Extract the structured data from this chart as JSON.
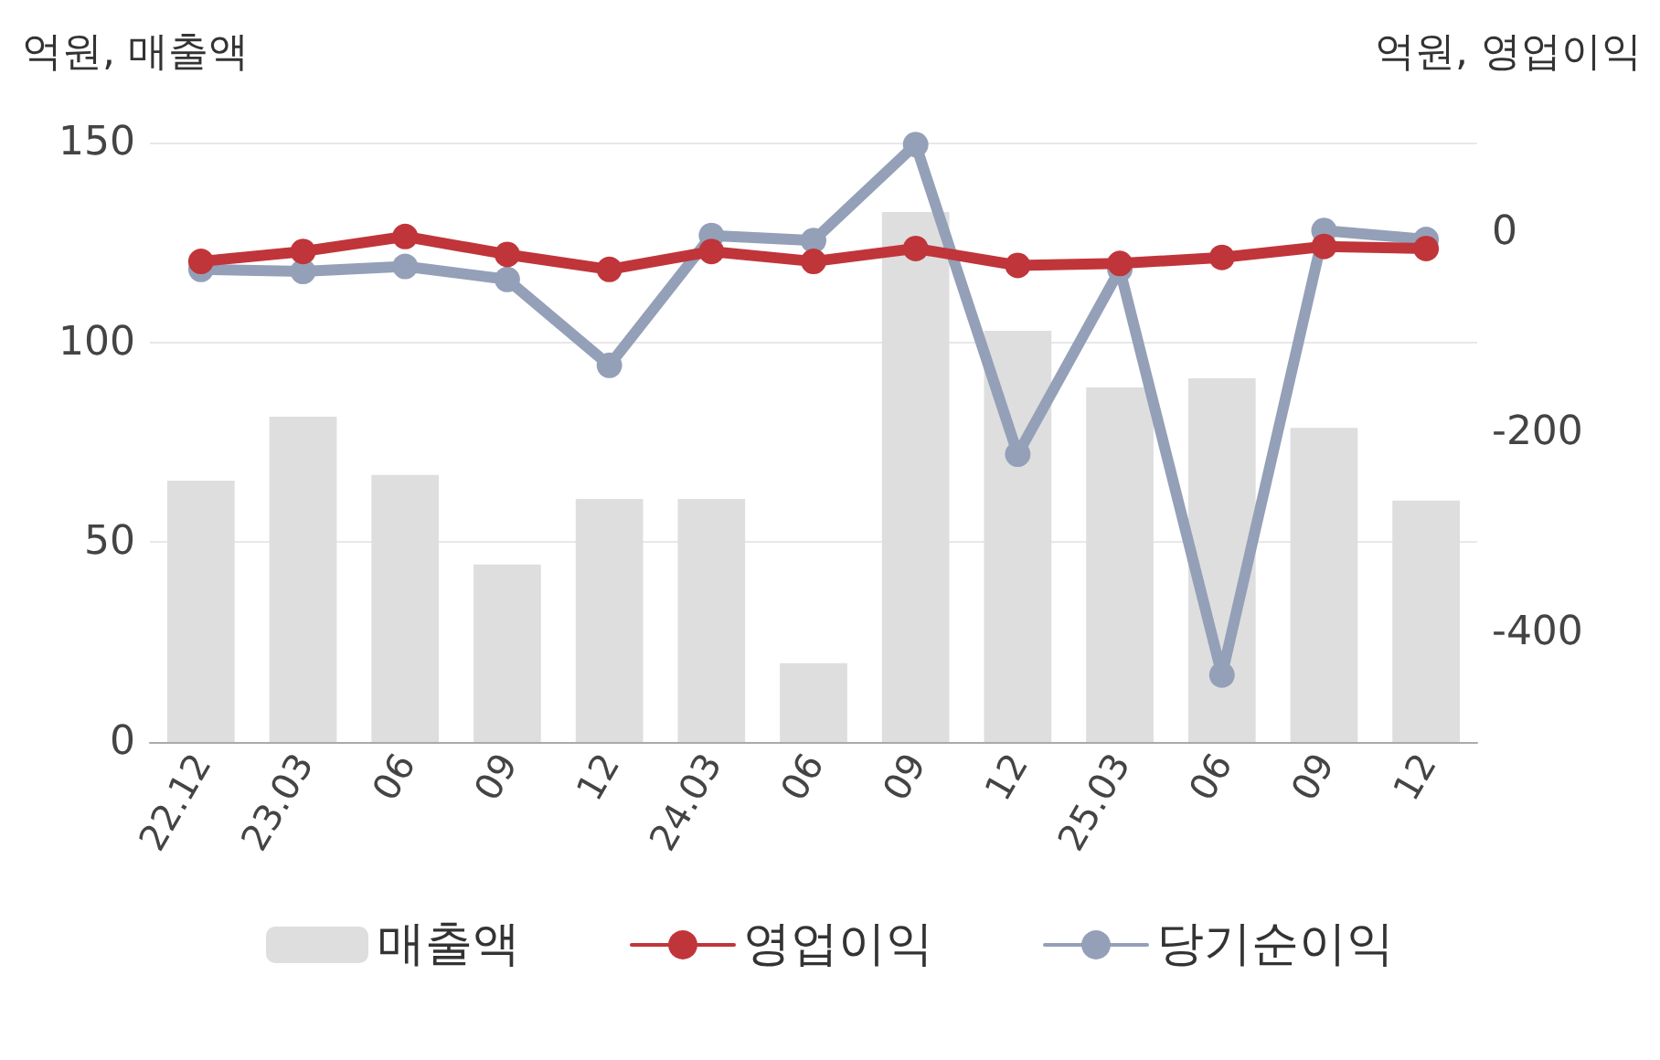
{
  "chart_data": {
    "type": "bar",
    "ylabel": "억원, 매출액",
    "y2label": "억원, 영업이익",
    "categories": [
      "22.12",
      "23.03",
      "06",
      "09",
      "12",
      "24.03",
      "06",
      "09",
      "12",
      "25.03",
      "06",
      "09",
      "12"
    ],
    "series": [
      {
        "name": "매출액",
        "color": "#dedede",
        "values": [
          65.4,
          81.4,
          66.8,
          44.4,
          60.8,
          60.8,
          19.7,
          132.6,
          102.9,
          88.7,
          91,
          78.6,
          60.4
        ]
      },
      {
        "name": "영업이익",
        "type": "line",
        "axis": "y2",
        "color": "#c0353a",
        "values": [
          -29,
          -19,
          -4,
          -22,
          -37,
          -19,
          -29,
          -16,
          -33,
          -31,
          -25,
          -14,
          -16
        ]
      },
      {
        "name": "당기순이익",
        "type": "line",
        "axis": "y2",
        "color": "#94a0b8",
        "values": [
          -37,
          -39,
          -34,
          -47,
          -133,
          -3,
          -8,
          88,
          -222,
          -37,
          -443,
          2,
          -7
        ]
      }
    ],
    "ylim": [
      0,
      150
    ],
    "yticks": [
      0,
      50,
      100,
      150
    ],
    "y2lim": [
      -510,
      90
    ],
    "y2ticks": [
      -400,
      -200,
      0
    ],
    "grid": "y",
    "legend": "bottom",
    "marker": "circle",
    "line_style": "solid"
  }
}
